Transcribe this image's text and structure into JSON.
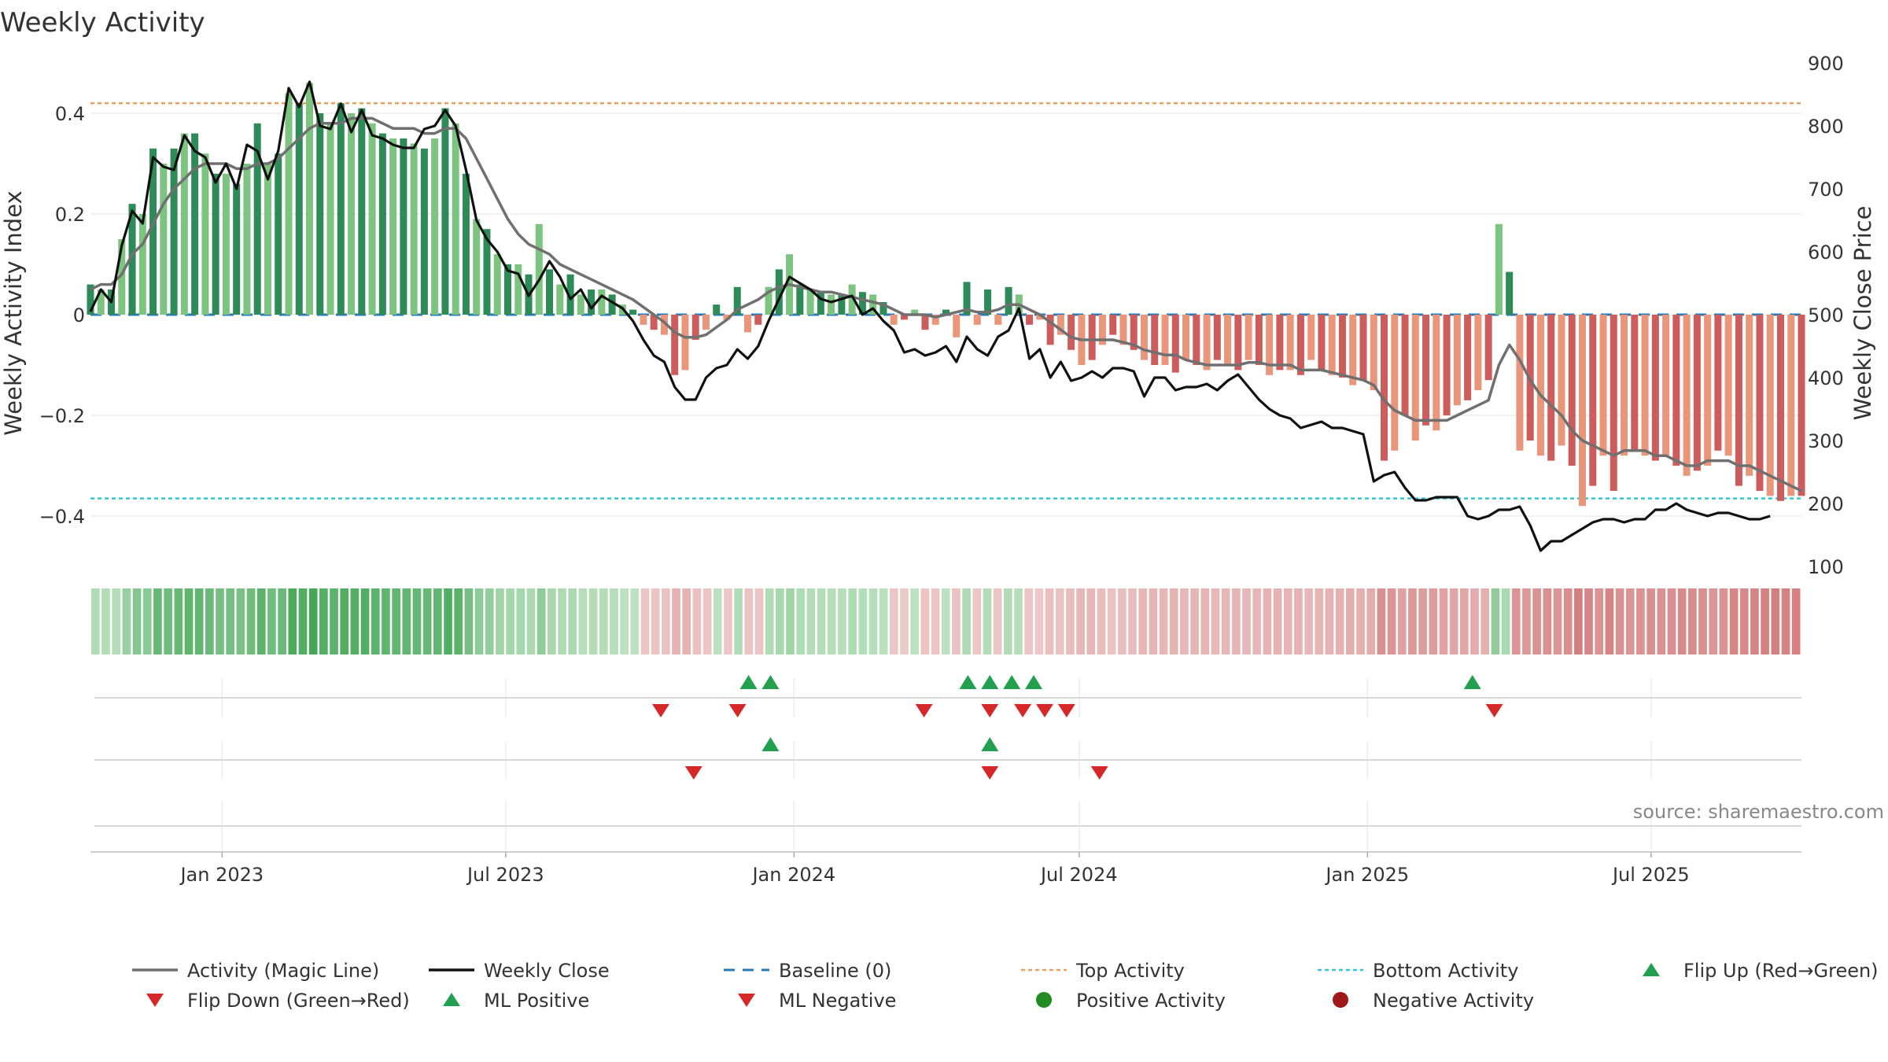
{
  "chart_data": {
    "type": "bar",
    "title": "Weekly Activity",
    "ylabel": "Weekly Activity Index",
    "y2label": "Weekly Close Price",
    "ylim": [
      -0.5,
      0.5
    ],
    "y2lim": [
      100,
      900
    ],
    "yticks": [
      0.4,
      0.2,
      0,
      -0.2,
      -0.4
    ],
    "ytick_labels": [
      "0.4",
      "0.2",
      "0",
      "−0.2",
      "−0.4"
    ],
    "y2ticks": [
      900,
      800,
      700,
      600,
      500,
      400,
      300,
      200,
      100
    ],
    "x_start": "2022-10-09",
    "x_end": "2025-10-05",
    "xticks": [
      "2023-01-01",
      "2023-07-01",
      "2024-01-01",
      "2024-07-01",
      "2025-01-01",
      "2025-07-01"
    ],
    "xtick_labels": [
      "Jan 2023",
      "Jul 2023",
      "Jan 2024",
      "Jul 2024",
      "Jan 2025",
      "Jul 2025"
    ],
    "top_activity": 0.42,
    "bottom_activity": -0.365,
    "grid": true,
    "source": "source: sharemaestro.com",
    "legend_position": "bottom",
    "legend": [
      {
        "label": "Activity (Magic Line)",
        "kind": "line",
        "color": "#707070"
      },
      {
        "label": "Weekly Close",
        "kind": "line",
        "color": "#111111"
      },
      {
        "label": "Baseline (0)",
        "kind": "dash",
        "color": "#2a7ab8"
      },
      {
        "label": "Top Activity",
        "kind": "dot",
        "color": "#e8a060"
      },
      {
        "label": "Bottom Activity",
        "kind": "dot",
        "color": "#30c8d8"
      },
      {
        "label": "Flip Up (Red→Green)",
        "kind": "tri-up",
        "color": "#22a050"
      },
      {
        "label": "Flip Down (Green→Red)",
        "kind": "tri-down",
        "color": "#d62828"
      },
      {
        "label": "ML Positive",
        "kind": "tri-up",
        "color": "#22a050"
      },
      {
        "label": "ML Negative",
        "kind": "tri-down",
        "color": "#d62828"
      },
      {
        "label": "Positive Activity",
        "kind": "circle",
        "color": "#228b22"
      },
      {
        "label": "Negative Activity",
        "kind": "circle",
        "color": "#a01818"
      }
    ],
    "colors": {
      "pos_dark": "#2e8b57",
      "pos_light": "#7cc47f",
      "neg_dark": "#cd5c5c",
      "neg_light": "#e9967a",
      "magic": "#707070",
      "close": "#111111",
      "baseline": "#2a7ab8",
      "top": "#e8a060",
      "bottom": "#30c8d8",
      "up": "#22a050",
      "down": "#d62828"
    },
    "activity": [
      0.06,
      0.05,
      0.05,
      0.15,
      0.22,
      0.2,
      0.33,
      0.3,
      0.33,
      0.36,
      0.36,
      0.32,
      0.28,
      0.28,
      0.26,
      0.3,
      0.38,
      0.3,
      0.32,
      0.44,
      0.42,
      0.46,
      0.4,
      0.38,
      0.42,
      0.4,
      0.41,
      0.38,
      0.36,
      0.35,
      0.35,
      0.34,
      0.33,
      0.35,
      0.41,
      0.38,
      0.28,
      0.19,
      0.17,
      0.12,
      0.1,
      0.1,
      0.08,
      0.18,
      0.09,
      0.06,
      0.08,
      0.04,
      0.05,
      0.05,
      0.04,
      0.02,
      0.01,
      -0.02,
      -0.03,
      -0.04,
      -0.12,
      -0.11,
      -0.05,
      -0.03,
      0.02,
      -0.01,
      0.055,
      -0.035,
      -0.02,
      0.055,
      0.09,
      0.12,
      0.06,
      0.05,
      0.045,
      0.04,
      0.04,
      0.06,
      0.045,
      0.04,
      0.025,
      -0.02,
      -0.01,
      0.01,
      -0.03,
      -0.02,
      0.01,
      -0.045,
      0.065,
      -0.02,
      0.05,
      -0.02,
      0.055,
      0.04,
      -0.02,
      -0.01,
      -0.06,
      -0.04,
      -0.07,
      -0.1,
      -0.09,
      -0.06,
      -0.04,
      -0.06,
      -0.07,
      -0.09,
      -0.1,
      -0.1,
      -0.115,
      -0.09,
      -0.1,
      -0.11,
      -0.09,
      -0.1,
      -0.11,
      -0.09,
      -0.1,
      -0.12,
      -0.11,
      -0.11,
      -0.12,
      -0.09,
      -0.11,
      -0.12,
      -0.125,
      -0.14,
      -0.13,
      -0.15,
      -0.29,
      -0.27,
      -0.2,
      -0.25,
      -0.22,
      -0.23,
      -0.2,
      -0.18,
      -0.17,
      -0.15,
      -0.13,
      0.18,
      0.085,
      -0.27,
      -0.25,
      -0.28,
      -0.29,
      -0.26,
      -0.3,
      -0.38,
      -0.34,
      -0.28,
      -0.35,
      -0.28,
      -0.27,
      -0.28,
      -0.29,
      -0.28,
      -0.3,
      -0.32,
      -0.31,
      -0.3,
      -0.27,
      -0.28,
      -0.34,
      -0.32,
      -0.35,
      -0.36,
      -0.37,
      -0.36,
      -0.36
    ],
    "magic_line": [
      0.05,
      0.06,
      0.06,
      0.08,
      0.12,
      0.14,
      0.18,
      0.22,
      0.25,
      0.27,
      0.29,
      0.3,
      0.3,
      0.3,
      0.29,
      0.29,
      0.3,
      0.3,
      0.31,
      0.33,
      0.35,
      0.37,
      0.38,
      0.38,
      0.38,
      0.39,
      0.39,
      0.39,
      0.38,
      0.37,
      0.37,
      0.37,
      0.36,
      0.36,
      0.37,
      0.37,
      0.35,
      0.31,
      0.27,
      0.23,
      0.19,
      0.16,
      0.14,
      0.13,
      0.12,
      0.1,
      0.09,
      0.08,
      0.07,
      0.06,
      0.05,
      0.04,
      0.03,
      0.015,
      0.0,
      -0.015,
      -0.035,
      -0.045,
      -0.045,
      -0.04,
      -0.025,
      -0.01,
      0.01,
      0.02,
      0.03,
      0.045,
      0.055,
      0.06,
      0.055,
      0.05,
      0.045,
      0.045,
      0.04,
      0.035,
      0.03,
      0.025,
      0.02,
      0.01,
      0.0,
      0.0,
      0.0,
      -0.005,
      0.0,
      0.005,
      0.01,
      0.005,
      0.005,
      0.01,
      0.02,
      0.02,
      0.01,
      0.0,
      -0.015,
      -0.03,
      -0.045,
      -0.05,
      -0.05,
      -0.05,
      -0.05,
      -0.055,
      -0.06,
      -0.07,
      -0.075,
      -0.08,
      -0.08,
      -0.09,
      -0.095,
      -0.1,
      -0.1,
      -0.1,
      -0.1,
      -0.095,
      -0.095,
      -0.1,
      -0.1,
      -0.1,
      -0.11,
      -0.11,
      -0.11,
      -0.115,
      -0.12,
      -0.125,
      -0.13,
      -0.14,
      -0.17,
      -0.19,
      -0.2,
      -0.21,
      -0.21,
      -0.21,
      -0.21,
      -0.2,
      -0.19,
      -0.18,
      -0.17,
      -0.1,
      -0.06,
      -0.09,
      -0.13,
      -0.16,
      -0.18,
      -0.2,
      -0.23,
      -0.25,
      -0.26,
      -0.27,
      -0.28,
      -0.27,
      -0.27,
      -0.27,
      -0.28,
      -0.28,
      -0.29,
      -0.3,
      -0.3,
      -0.29,
      -0.29,
      -0.29,
      -0.3,
      -0.3,
      -0.31,
      -0.32,
      -0.33,
      -0.34,
      -0.35
    ],
    "weekly_close": [
      505,
      540,
      520,
      610,
      665,
      645,
      750,
      735,
      730,
      785,
      760,
      750,
      710,
      740,
      700,
      770,
      760,
      715,
      760,
      860,
      830,
      870,
      800,
      795,
      835,
      790,
      825,
      785,
      780,
      770,
      765,
      765,
      795,
      800,
      825,
      800,
      730,
      650,
      620,
      600,
      570,
      565,
      530,
      555,
      585,
      560,
      525,
      540,
      510,
      530,
      520,
      510,
      490,
      460,
      435,
      425,
      385,
      365,
      365,
      400,
      415,
      420,
      445,
      430,
      450,
      490,
      525,
      560,
      550,
      540,
      525,
      520,
      525,
      530,
      500,
      510,
      490,
      475,
      440,
      445,
      435,
      440,
      450,
      425,
      465,
      445,
      435,
      465,
      475,
      510,
      430,
      445,
      400,
      425,
      395,
      400,
      410,
      400,
      415,
      415,
      410,
      370,
      400,
      400,
      380,
      385,
      385,
      390,
      380,
      395,
      405,
      385,
      365,
      350,
      340,
      335,
      320,
      325,
      330,
      320,
      320,
      315,
      310,
      235,
      245,
      250,
      225,
      205,
      205,
      210,
      210,
      210,
      180,
      175,
      180,
      190,
      190,
      195,
      165,
      125,
      140,
      140,
      150,
      160,
      170,
      175,
      175,
      170,
      175,
      175,
      190,
      190,
      200,
      190,
      185,
      180,
      185,
      185,
      180,
      175,
      175,
      180
    ],
    "flip_up": [
      "2023-12-03",
      "2023-12-17",
      "2024-04-21",
      "2024-05-05",
      "2024-05-19",
      "2024-06-02",
      "2025-03-09"
    ],
    "flip_down": [
      "2023-10-08",
      "2023-11-26",
      "2024-03-24",
      "2024-05-05",
      "2024-05-26",
      "2024-06-09",
      "2024-06-23",
      "2025-03-23"
    ],
    "ml_positive": [
      "2023-12-17",
      "2024-05-05"
    ],
    "ml_negative": [
      "2023-10-29",
      "2024-05-05",
      "2024-07-14"
    ]
  }
}
